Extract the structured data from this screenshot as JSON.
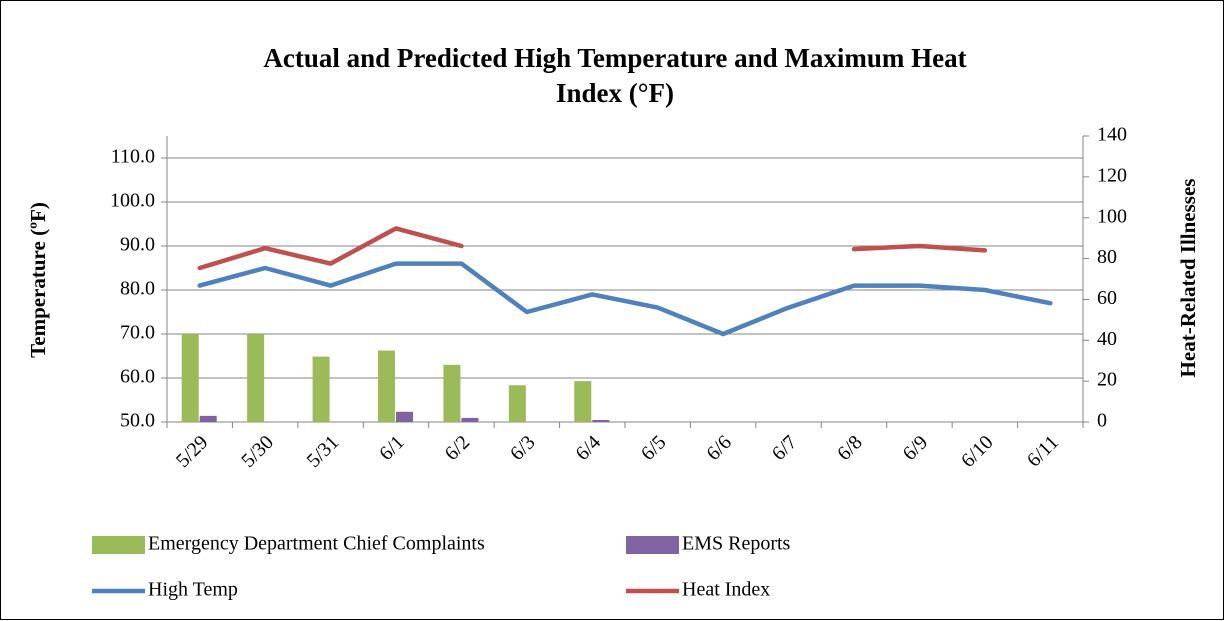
{
  "chart_data": {
    "type": "combo",
    "title": "Actual and Predicted High Temperature and Maximum Heat",
    "title_line2": "Index (°F)",
    "ylabel": "Temperature (ºF)",
    "y2label": "Heat-Related Illnesses",
    "categories": [
      "5/29",
      "5/30",
      "5/31",
      "6/1",
      "6/2",
      "6/3",
      "6/4",
      "6/5",
      "6/6",
      "6/7",
      "6/8",
      "6/9",
      "6/10",
      "6/11"
    ],
    "series": [
      {
        "name": "Emergency Department Chief Complaints",
        "type": "bar",
        "axis": "y2",
        "color": "#9bbb59",
        "values": [
          43,
          43,
          32,
          35,
          28,
          18,
          20,
          null,
          null,
          null,
          null,
          null,
          null,
          null
        ]
      },
      {
        "name": "EMS Reports",
        "type": "bar",
        "axis": "y2",
        "color": "#8064a2",
        "values": [
          3,
          0,
          0,
          5,
          2,
          0,
          1,
          null,
          null,
          null,
          null,
          null,
          null,
          null
        ]
      },
      {
        "name": "High Temp",
        "type": "line",
        "axis": "y",
        "color": "#4f81bd",
        "values": [
          81,
          85,
          81,
          86,
          86,
          75,
          79,
          76,
          70,
          76,
          81,
          81,
          80,
          77
        ]
      },
      {
        "name": "Heat Index",
        "type": "line",
        "axis": "y",
        "color": "#c0504d",
        "values": [
          85,
          89.5,
          86,
          94,
          90,
          null,
          null,
          null,
          null,
          null,
          89.3,
          90,
          89,
          null
        ]
      }
    ],
    "ylim": [
      50,
      115
    ],
    "yticks": [
      {
        "value": 50,
        "label": "50.0"
      },
      {
        "value": 60,
        "label": "60.0"
      },
      {
        "value": 70,
        "label": "70.0"
      },
      {
        "value": 80,
        "label": "80.0"
      },
      {
        "value": 90,
        "label": "90.0"
      },
      {
        "value": 100,
        "label": "100.0"
      },
      {
        "value": 110,
        "label": "110.0"
      }
    ],
    "y2lim": [
      0,
      140
    ],
    "y2ticks": [
      0,
      20,
      40,
      60,
      80,
      100,
      120,
      140
    ],
    "grid": true,
    "legend": "bottom"
  }
}
